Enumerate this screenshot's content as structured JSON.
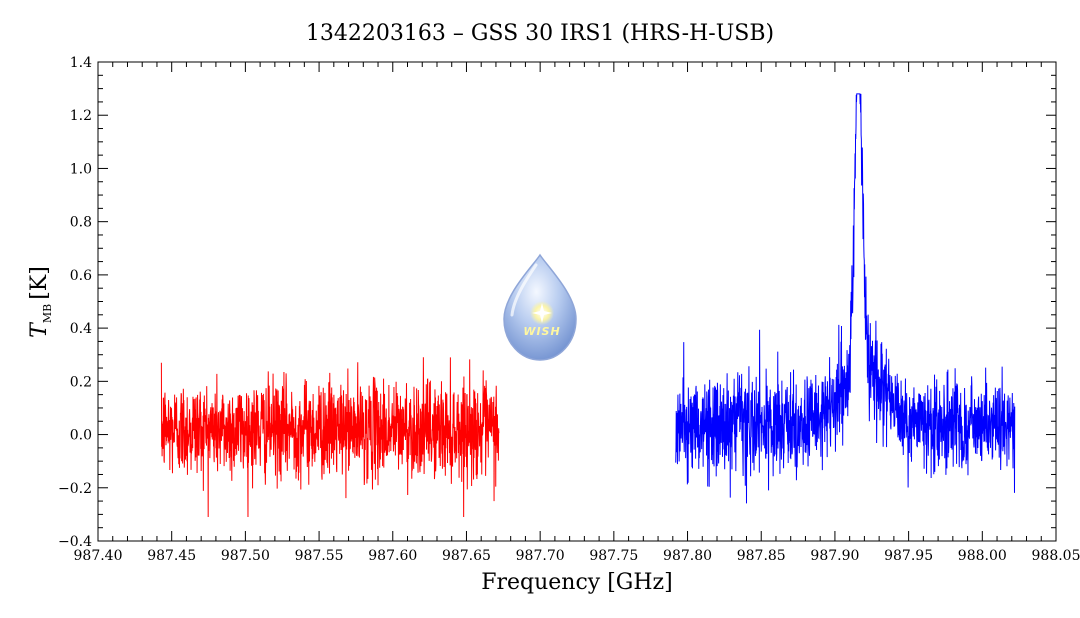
{
  "chart_data": {
    "type": "line",
    "title": "1342203163 – GSS 30 IRS1 (HRS-H-USB)",
    "xlabel": "Frequency [GHz]",
    "ylabel_symbol": "T",
    "ylabel_subscript": "MB",
    "ylabel_unit": "[K]",
    "xlim": [
      987.4,
      988.05
    ],
    "ylim": [
      -0.4,
      1.4
    ],
    "x_ticks": [
      "987.40",
      "987.45",
      "987.50",
      "987.55",
      "987.60",
      "987.65",
      "987.70",
      "987.75",
      "987.80",
      "987.85",
      "987.90",
      "987.95",
      "988.00",
      "988.05"
    ],
    "y_ticks": [
      "−0.4",
      "−0.2",
      "0.0",
      "0.2",
      "0.4",
      "0.6",
      "0.8",
      "1.0",
      "1.2",
      "1.4"
    ],
    "grid": false,
    "series": [
      {
        "color": "#ff0000",
        "x_range": [
          987.443,
          987.672
        ],
        "baseline": 0.02,
        "noise_rms": 0.09,
        "ymin": -0.31,
        "ymax": 0.36
      },
      {
        "color": "#0000ff",
        "x_range": [
          987.792,
          988.022
        ],
        "baseline": 0.03,
        "noise_rms": 0.09,
        "ymin": -0.26,
        "ymax": 1.28,
        "line_center": 987.916,
        "line_peak": 1.2,
        "line_fwhm": 0.006
      }
    ]
  },
  "logo": {
    "text": "WISH",
    "icon": "water-drop-star-icon"
  }
}
